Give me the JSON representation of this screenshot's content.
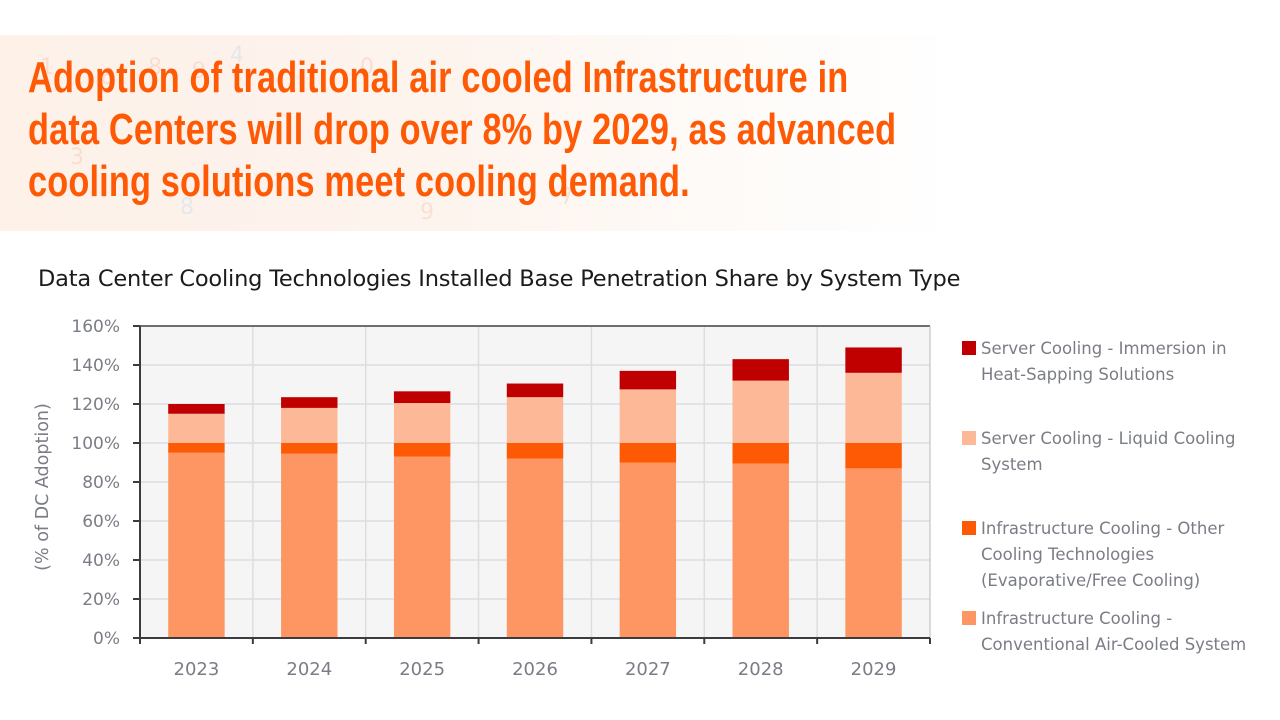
{
  "headline": {
    "lines": [
      "Adoption of traditional air cooled Infrastructure in",
      "data Centers will drop over 8% by 2029, as advanced",
      "cooling solutions meet cooling demand."
    ],
    "color": "#fe5a06"
  },
  "chart_data": {
    "type": "bar",
    "stacked": true,
    "title": "Data Center Cooling Technologies Installed Base Penetration Share by System Type",
    "xlabel": "",
    "ylabel": "(% of DC Adoption)",
    "ylim": [
      0,
      160
    ],
    "yticks": [
      0,
      20,
      40,
      60,
      80,
      100,
      120,
      140,
      160
    ],
    "ytick_labels": [
      "0%",
      "20%",
      "40%",
      "60%",
      "80%",
      "100%",
      "120%",
      "140%",
      "160%"
    ],
    "grid": true,
    "legend_position": "right",
    "categories": [
      "2023",
      "2024",
      "2025",
      "2026",
      "2027",
      "2028",
      "2029"
    ],
    "series": [
      {
        "name": "Infrastructure Cooling - Conventional Air-Cooled System",
        "color": "#fe9663",
        "values": [
          95,
          94.5,
          93,
          92,
          90,
          89.5,
          87
        ]
      },
      {
        "name": "Infrastructure Cooling - Other Cooling Technologies (Evaporative/Free Cooling)",
        "color": "#fe5a06",
        "values": [
          5,
          5.5,
          7,
          8,
          10,
          10.5,
          13
        ]
      },
      {
        "name": "Server Cooling - Liquid Cooling System",
        "color": "#fdb997",
        "values": [
          15,
          18,
          20.5,
          23.5,
          27.5,
          32,
          36
        ]
      },
      {
        "name": "Server Cooling - Immersion in Heat-Sapping Solutions",
        "color": "#c00000",
        "values": [
          5,
          5.5,
          6,
          7,
          9.5,
          11,
          13
        ]
      }
    ],
    "legend_order": [
      3,
      2,
      1,
      0
    ],
    "legend_labels": [
      [
        "Server Cooling - Immersion in",
        "Heat-Sapping Solutions"
      ],
      [
        "Server Cooling - Liquid Cooling",
        "System"
      ],
      [
        "Infrastructure Cooling - Other",
        "Cooling Technologies",
        "(Evaporative/Free Cooling)"
      ],
      [
        "Infrastructure Cooling -",
        "Conventional Air-Cooled System"
      ]
    ]
  }
}
